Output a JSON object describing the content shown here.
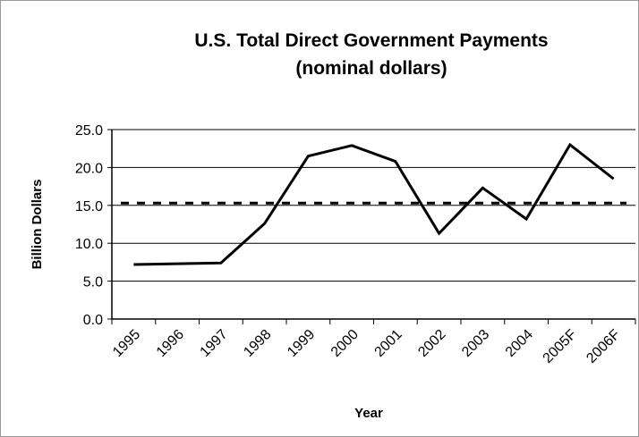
{
  "chart_data": {
    "type": "line",
    "title": [
      "U.S. Total Direct Government Payments",
      "(nominal dollars)"
    ],
    "x_label": "Year",
    "y_label": "Billion Dollars",
    "categories": [
      "1995",
      "1996",
      "1997",
      "1998",
      "1999",
      "2000",
      "2001",
      "2002",
      "2003",
      "2004",
      "2005F",
      "2006F"
    ],
    "series": [
      {
        "color": "#000000",
        "values": [
          7.2,
          7.3,
          7.4,
          12.6,
          21.5,
          22.9,
          20.8,
          11.3,
          17.3,
          13.2,
          23.0,
          18.5
        ]
      }
    ],
    "reference_lines": [
      {
        "value": 15.3,
        "style": "dashed",
        "color": "#000000"
      }
    ],
    "ylim": [
      0,
      25
    ],
    "yticks": [
      {
        "value": 0,
        "label": "0.0"
      },
      {
        "value": 5,
        "label": "5.0"
      },
      {
        "value": 10,
        "label": "10.0"
      },
      {
        "value": 15,
        "label": "15.0"
      },
      {
        "value": 20,
        "label": "20.0"
      },
      {
        "value": 25,
        "label": "25.0"
      }
    ],
    "grid": true
  }
}
